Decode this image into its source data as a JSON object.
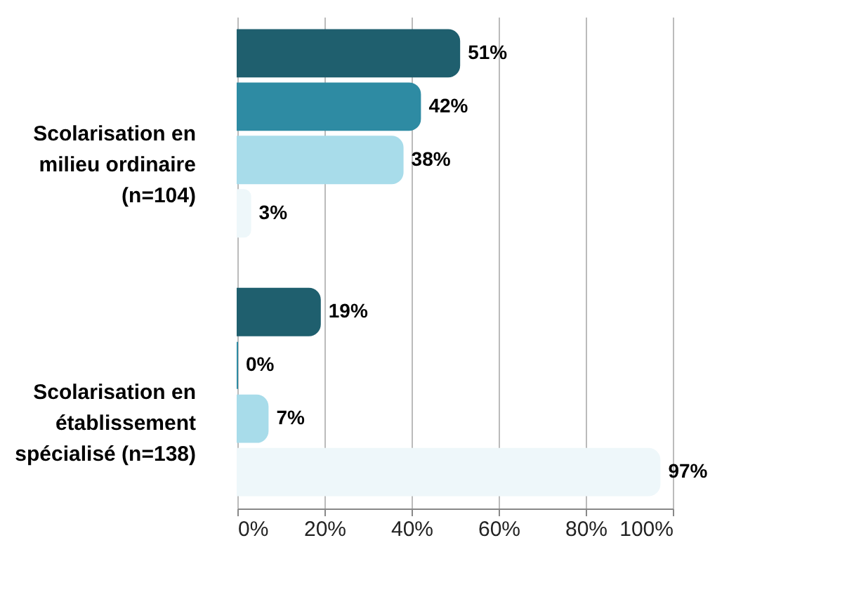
{
  "chart_data": {
    "type": "bar",
    "orientation": "horizontal",
    "categories": [
      "Scolarisation en milieu ordinaire (n=104)",
      "Scolarisation en établissement spécialisé (n=138)"
    ],
    "series": [
      {
        "color": "#1f5f6e",
        "values": [
          51,
          19
        ],
        "value_labels": [
          "51%",
          "19%"
        ]
      },
      {
        "color": "#2e8ba3",
        "values": [
          42,
          0
        ],
        "value_labels": [
          "42%",
          "0%"
        ]
      },
      {
        "color": "#a8dcea",
        "values": [
          38,
          7
        ],
        "value_labels": [
          "38%",
          "7%"
        ]
      },
      {
        "color": "#eef7fa",
        "values": [
          3,
          97
        ],
        "value_labels": [
          "3%",
          "97%"
        ]
      }
    ],
    "xlim": [
      0,
      100
    ],
    "xticks": [
      {
        "value": 0,
        "label": "0%"
      },
      {
        "value": 20,
        "label": "20%"
      },
      {
        "value": 40,
        "label": "40%"
      },
      {
        "value": 60,
        "label": "60%"
      },
      {
        "value": 80,
        "label": "80%"
      },
      {
        "value": 100,
        "label": "100%"
      }
    ],
    "grid": "x"
  }
}
